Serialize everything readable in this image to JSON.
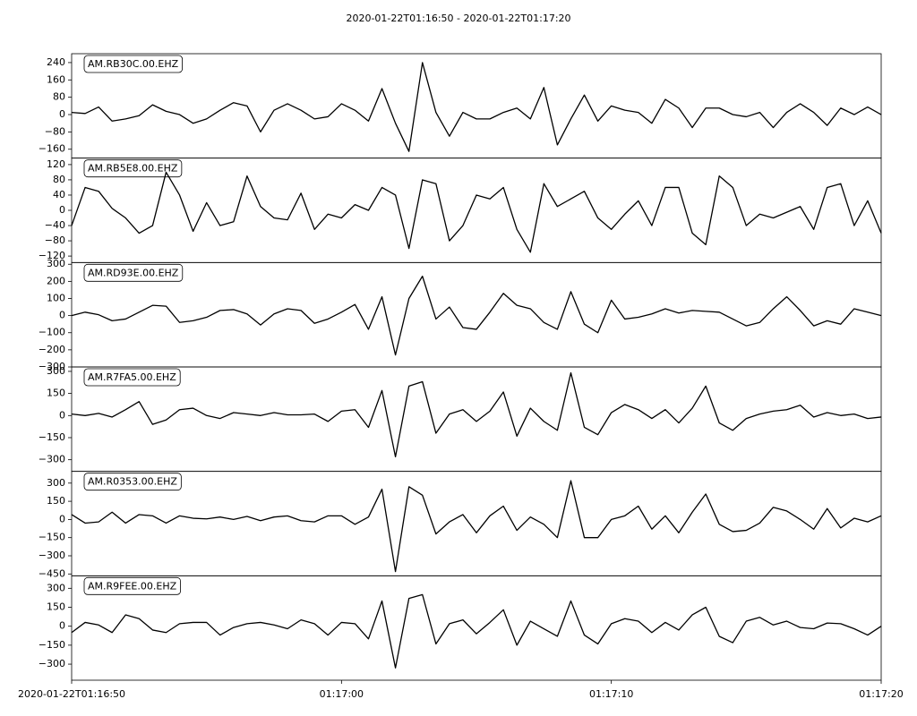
{
  "chart_data": {
    "type": "line",
    "title": "2020-01-22T01:16:50  -  2020-01-22T01:17:20",
    "x": [
      0,
      0.5,
      1,
      1.5,
      2,
      2.5,
      3,
      3.5,
      4,
      4.5,
      5,
      5.5,
      6,
      6.5,
      7,
      7.5,
      8,
      8.5,
      9,
      9.5,
      10,
      10.5,
      11,
      11.5,
      12,
      12.5,
      13,
      13.5,
      14,
      14.5,
      15,
      15.5,
      16,
      16.5,
      17,
      17.5,
      18,
      18.5,
      19,
      19.5,
      20,
      20.5,
      21,
      21.5,
      22,
      22.5,
      23,
      23.5,
      24,
      24.5,
      25,
      25.5,
      26,
      26.5,
      27,
      27.5,
      28,
      28.5,
      29,
      29.5,
      30
    ],
    "xlim": [
      0,
      30
    ],
    "xticks": [
      {
        "value": 0,
        "label": "2020-01-22T01:16:50"
      },
      {
        "value": 10,
        "label": "01:17:00"
      },
      {
        "value": 20,
        "label": "01:17:10"
      },
      {
        "value": 30,
        "label": "01:17:20"
      }
    ],
    "panels": [
      {
        "label": "AM.RB30C.00.EHZ",
        "ylim": [
          -201,
          281
        ],
        "yticks": [
          {
            "value": -160,
            "label": "−160"
          },
          {
            "value": -80,
            "label": "−80"
          },
          0,
          80,
          160,
          240
        ],
        "series": [
          {
            "color": "#000000",
            "values": [
              10,
              5,
              35,
              -30,
              -20,
              -5,
              45,
              15,
              0,
              -40,
              -20,
              20,
              55,
              40,
              -80,
              20,
              50,
              20,
              -20,
              -10,
              50,
              20,
              -30,
              120,
              -40,
              -170,
              240,
              10,
              -100,
              10,
              -20,
              -20,
              10,
              30,
              -20,
              125,
              -140,
              -20,
              90,
              -30,
              40,
              20,
              10,
              -40,
              70,
              30,
              -60,
              30,
              30,
              0,
              -10,
              10,
              -60,
              10,
              50,
              10,
              -50,
              30,
              0,
              35,
              0
            ]
          }
        ]
      },
      {
        "label": "AM.RB5E8.00.EHZ",
        "ylim": [
          -137,
          137
        ],
        "yticks": [
          {
            "value": -120,
            "label": "−120"
          },
          {
            "value": -80,
            "label": "−80"
          },
          {
            "value": -40,
            "label": "−40"
          },
          0,
          40,
          80,
          120
        ],
        "series": [
          {
            "color": "#000000",
            "values": [
              -40,
              60,
              50,
              5,
              -20,
              -60,
              -40,
              100,
              40,
              -55,
              20,
              -40,
              -30,
              90,
              10,
              -20,
              -25,
              45,
              -50,
              -10,
              -20,
              15,
              0,
              60,
              40,
              -100,
              80,
              70,
              -80,
              -40,
              40,
              30,
              60,
              -50,
              -110,
              70,
              10,
              30,
              50,
              -20,
              -50,
              -10,
              25,
              -40,
              60,
              60,
              -60,
              -90,
              90,
              60,
              -40,
              -10,
              -20,
              -5,
              10,
              -50,
              60,
              70,
              -40,
              25,
              -60
            ]
          }
        ]
      },
      {
        "label": "AM.RD93E.00.EHZ",
        "ylim": [
          -300,
          310
        ],
        "yticks": [
          {
            "value": -300,
            "label": "−300"
          },
          {
            "value": -200,
            "label": "−200"
          },
          {
            "value": -100,
            "label": "−100"
          },
          0,
          100,
          200,
          300
        ],
        "series": [
          {
            "color": "#000000",
            "values": [
              0,
              20,
              5,
              -30,
              -20,
              20,
              60,
              55,
              -40,
              -30,
              -10,
              30,
              35,
              10,
              -55,
              10,
              40,
              30,
              -45,
              -20,
              20,
              65,
              -80,
              110,
              -230,
              100,
              230,
              -20,
              50,
              -70,
              -80,
              20,
              130,
              60,
              40,
              -40,
              -80,
              140,
              -50,
              -100,
              90,
              -20,
              -10,
              10,
              40,
              15,
              30,
              25,
              20,
              -20,
              -60,
              -40,
              40,
              110,
              30,
              -60,
              -30,
              -50,
              40,
              20,
              0
            ]
          }
        ]
      },
      {
        "label": "AM.R7FA5.00.EHZ",
        "ylim": [
          -379,
          330
        ],
        "yticks": [
          {
            "value": -300,
            "label": "−300"
          },
          {
            "value": -150,
            "label": "−150"
          },
          0,
          150,
          300
        ],
        "series": [
          {
            "color": "#000000",
            "values": [
              10,
              0,
              15,
              -10,
              40,
              95,
              -60,
              -30,
              40,
              50,
              0,
              -20,
              20,
              10,
              0,
              20,
              5,
              5,
              10,
              -40,
              30,
              40,
              -80,
              170,
              -280,
              200,
              230,
              -120,
              10,
              40,
              -40,
              30,
              160,
              -140,
              50,
              -40,
              -100,
              290,
              -80,
              -130,
              20,
              75,
              40,
              -20,
              40,
              -50,
              50,
              200,
              -50,
              -100,
              -20,
              10,
              30,
              40,
              70,
              -10,
              20,
              0,
              10,
              -20,
              -10
            ]
          }
        ]
      },
      {
        "label": "AM.R0353.00.EHZ",
        "ylim": [
          -465,
          397
        ],
        "yticks": [
          {
            "value": -450,
            "label": "−450"
          },
          {
            "value": -300,
            "label": "−300"
          },
          {
            "value": -150,
            "label": "−150"
          },
          0,
          150,
          300
        ],
        "series": [
          {
            "color": "#000000",
            "values": [
              40,
              -30,
              -20,
              60,
              -30,
              40,
              30,
              -30,
              30,
              10,
              5,
              20,
              0,
              25,
              -10,
              20,
              30,
              -10,
              -20,
              30,
              30,
              -40,
              20,
              250,
              -430,
              270,
              200,
              -120,
              -20,
              40,
              -110,
              30,
              110,
              -90,
              20,
              -40,
              -150,
              320,
              -150,
              -150,
              0,
              30,
              110,
              -80,
              30,
              -110,
              60,
              210,
              -40,
              -100,
              -90,
              -30,
              100,
              70,
              0,
              -80,
              90,
              -70,
              10,
              -20,
              30
            ]
          }
        ]
      },
      {
        "label": "AM.R9FEE.00.EHZ",
        "ylim": [
          -427,
          399
        ],
        "yticks": [
          {
            "value": -300,
            "label": "−300"
          },
          {
            "value": -150,
            "label": "−150"
          },
          0,
          150,
          300
        ],
        "series": [
          {
            "color": "#000000",
            "values": [
              -50,
              30,
              10,
              -50,
              90,
              60,
              -30,
              -50,
              20,
              30,
              30,
              -70,
              -10,
              20,
              30,
              10,
              -20,
              50,
              20,
              -70,
              30,
              20,
              -100,
              200,
              -330,
              220,
              250,
              -140,
              20,
              50,
              -60,
              30,
              130,
              -150,
              40,
              -20,
              -80,
              200,
              -70,
              -140,
              20,
              60,
              40,
              -50,
              30,
              -30,
              90,
              150,
              -80,
              -130,
              40,
              70,
              10,
              40,
              -10,
              -20,
              25,
              20,
              -20,
              -70,
              0
            ]
          }
        ]
      }
    ]
  }
}
